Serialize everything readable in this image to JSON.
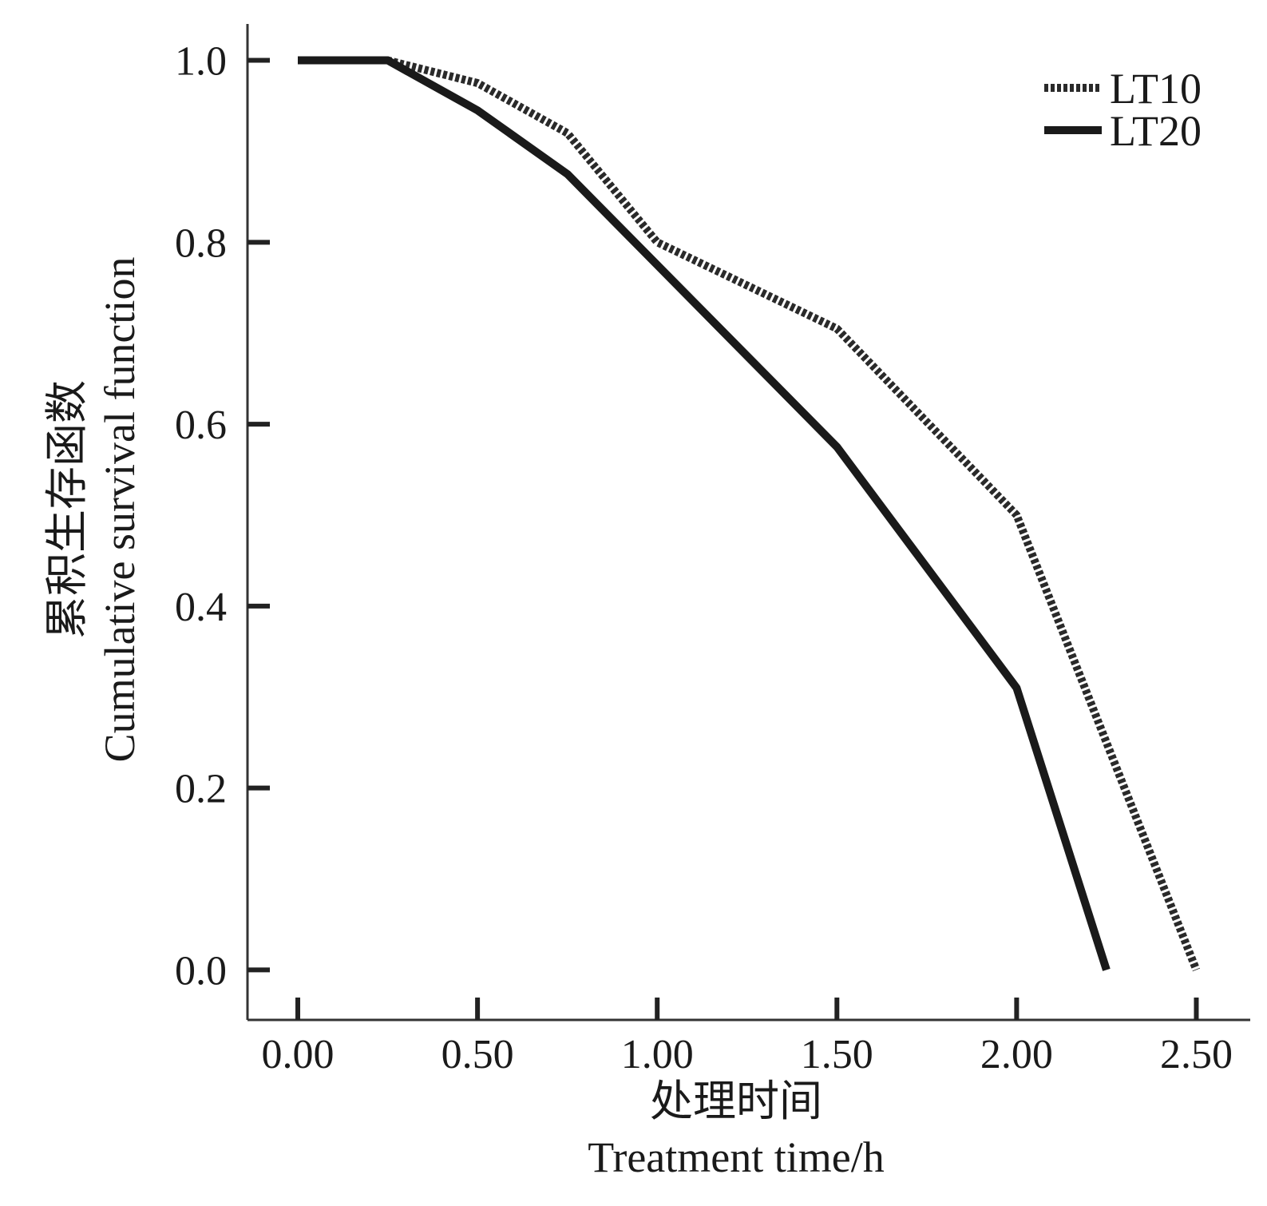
{
  "chart_data": {
    "type": "line",
    "title": "",
    "xlabel_cn": "处理时间",
    "xlabel": "Treatment time/h",
    "ylabel_cn": "累积生存函数",
    "ylabel": "Cumulative survival function",
    "xlim": [
      -0.14,
      2.65
    ],
    "ylim": [
      -0.055,
      1.04
    ],
    "x_ticks": [
      0.0,
      0.5,
      1.0,
      1.5,
      2.0,
      2.5
    ],
    "x_tick_labels": [
      "0.00",
      "0.50",
      "1.00",
      "1.50",
      "2.00",
      "2.50"
    ],
    "y_ticks": [
      0.0,
      0.2,
      0.4,
      0.6,
      0.8,
      1.0
    ],
    "y_tick_labels": [
      "0.0",
      "0.2",
      "0.4",
      "0.6",
      "0.8",
      "1.0"
    ],
    "grid": false,
    "legend_position": "top-right",
    "series": [
      {
        "name": "LT10",
        "style": "dotted",
        "color": "#2a2a2a",
        "x": [
          0.0,
          0.25,
          0.5,
          0.75,
          1.0,
          1.5,
          2.0,
          2.5
        ],
        "y": [
          1.0,
          1.0,
          0.975,
          0.92,
          0.8,
          0.705,
          0.5,
          0.0
        ]
      },
      {
        "name": "LT20",
        "style": "solid",
        "color": "#1a1a1a",
        "x": [
          0.0,
          0.25,
          0.5,
          0.75,
          1.0,
          1.5,
          2.0,
          2.25
        ],
        "y": [
          1.0,
          1.0,
          0.945,
          0.875,
          0.775,
          0.575,
          0.31,
          0.0
        ]
      }
    ]
  }
}
